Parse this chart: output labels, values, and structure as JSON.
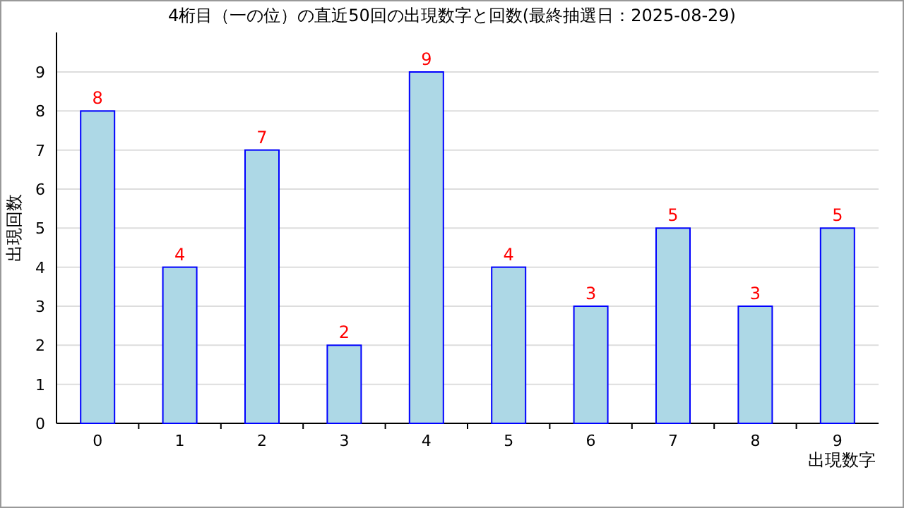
{
  "chart_data": {
    "type": "bar",
    "title": "4桁目（一の位）の直近50回の出現数字と回数(最終抽選日：2025-08-29)",
    "xlabel": "出現数字",
    "ylabel": "出現回数",
    "categories": [
      "0",
      "1",
      "2",
      "3",
      "4",
      "5",
      "6",
      "7",
      "8",
      "9"
    ],
    "values": [
      8,
      4,
      7,
      2,
      9,
      4,
      3,
      5,
      3,
      5
    ],
    "color": "#add8e6",
    "ylim": [
      0,
      9
    ],
    "yticks": [
      0,
      1,
      2,
      3,
      4,
      5,
      6,
      7,
      8,
      9
    ],
    "grid": "y",
    "data_labels": true
  }
}
